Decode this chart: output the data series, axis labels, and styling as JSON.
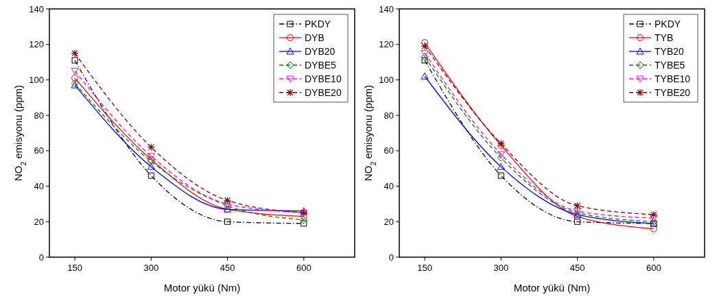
{
  "chart_data": [
    {
      "type": "line",
      "xlabel": "Motor yükü (Nm)",
      "ylabel": "NO$_{2}$ emisyonu (ppm)",
      "x": [
        150,
        300,
        450,
        600
      ],
      "xlim": [
        100,
        700
      ],
      "xticks": [
        150,
        300,
        450,
        600
      ],
      "ylim": [
        0,
        140
      ],
      "yticks": [
        0,
        20,
        40,
        60,
        80,
        100,
        120,
        140
      ],
      "legend": "top right",
      "series": [
        {
          "name": "PKDY",
          "color": "#000000",
          "marker": "square",
          "line_style": "dashdot",
          "values": [
            111,
            46,
            20,
            19
          ]
        },
        {
          "name": "DYB",
          "color": "#ff0000",
          "marker": "circle",
          "line_style": "solid",
          "values": [
            101,
            55,
            27,
            23
          ]
        },
        {
          "name": "DYB20",
          "color": "#0000ff",
          "marker": "triangle",
          "line_style": "solid",
          "values": [
            97,
            51,
            27,
            26
          ]
        },
        {
          "name": "DYBE5",
          "color": "#008000",
          "marker": "diamond",
          "line_style": "dashed",
          "values": [
            98,
            54,
            29,
            21
          ]
        },
        {
          "name": "DYBE10",
          "color": "#ff00ff",
          "marker": "triangle-down",
          "line_style": "dashed",
          "values": [
            105,
            57,
            30,
            25
          ]
        },
        {
          "name": "DYBE20",
          "color": "#800000",
          "marker": "cross",
          "line_style": "dashed",
          "values": [
            115,
            62,
            32,
            25
          ]
        }
      ]
    },
    {
      "type": "line",
      "xlabel": "Motor yükü (Nm)",
      "ylabel": "NO$_{2}$ emisyonu (ppm)",
      "x": [
        150,
        300,
        450,
        600
      ],
      "xlim": [
        100,
        700
      ],
      "xticks": [
        150,
        300,
        450,
        600
      ],
      "ylim": [
        0,
        140
      ],
      "yticks": [
        0,
        20,
        40,
        60,
        80,
        100,
        120,
        140
      ],
      "legend": "top right",
      "series": [
        {
          "name": "PKDY",
          "color": "#000000",
          "marker": "square",
          "line_style": "dashdot",
          "values": [
            111,
            46,
            20,
            19
          ]
        },
        {
          "name": "TYB",
          "color": "#ff0000",
          "marker": "circle",
          "line_style": "solid",
          "values": [
            121,
            63,
            23,
            16
          ]
        },
        {
          "name": "TYB20",
          "color": "#0000ff",
          "marker": "triangle",
          "line_style": "solid",
          "values": [
            102,
            51,
            24,
            19
          ]
        },
        {
          "name": "TYBE5",
          "color": "#008000",
          "marker": "diamond",
          "line_style": "dashed",
          "values": [
            113,
            56,
            25,
            20
          ]
        },
        {
          "name": "TYBE10",
          "color": "#ff00ff",
          "marker": "triangle-down",
          "line_style": "dashed",
          "values": [
            115,
            58,
            26,
            22
          ]
        },
        {
          "name": "TYBE20",
          "color": "#800000",
          "marker": "cross",
          "line_style": "dashed",
          "values": [
            119,
            64,
            29,
            24
          ]
        }
      ]
    }
  ]
}
